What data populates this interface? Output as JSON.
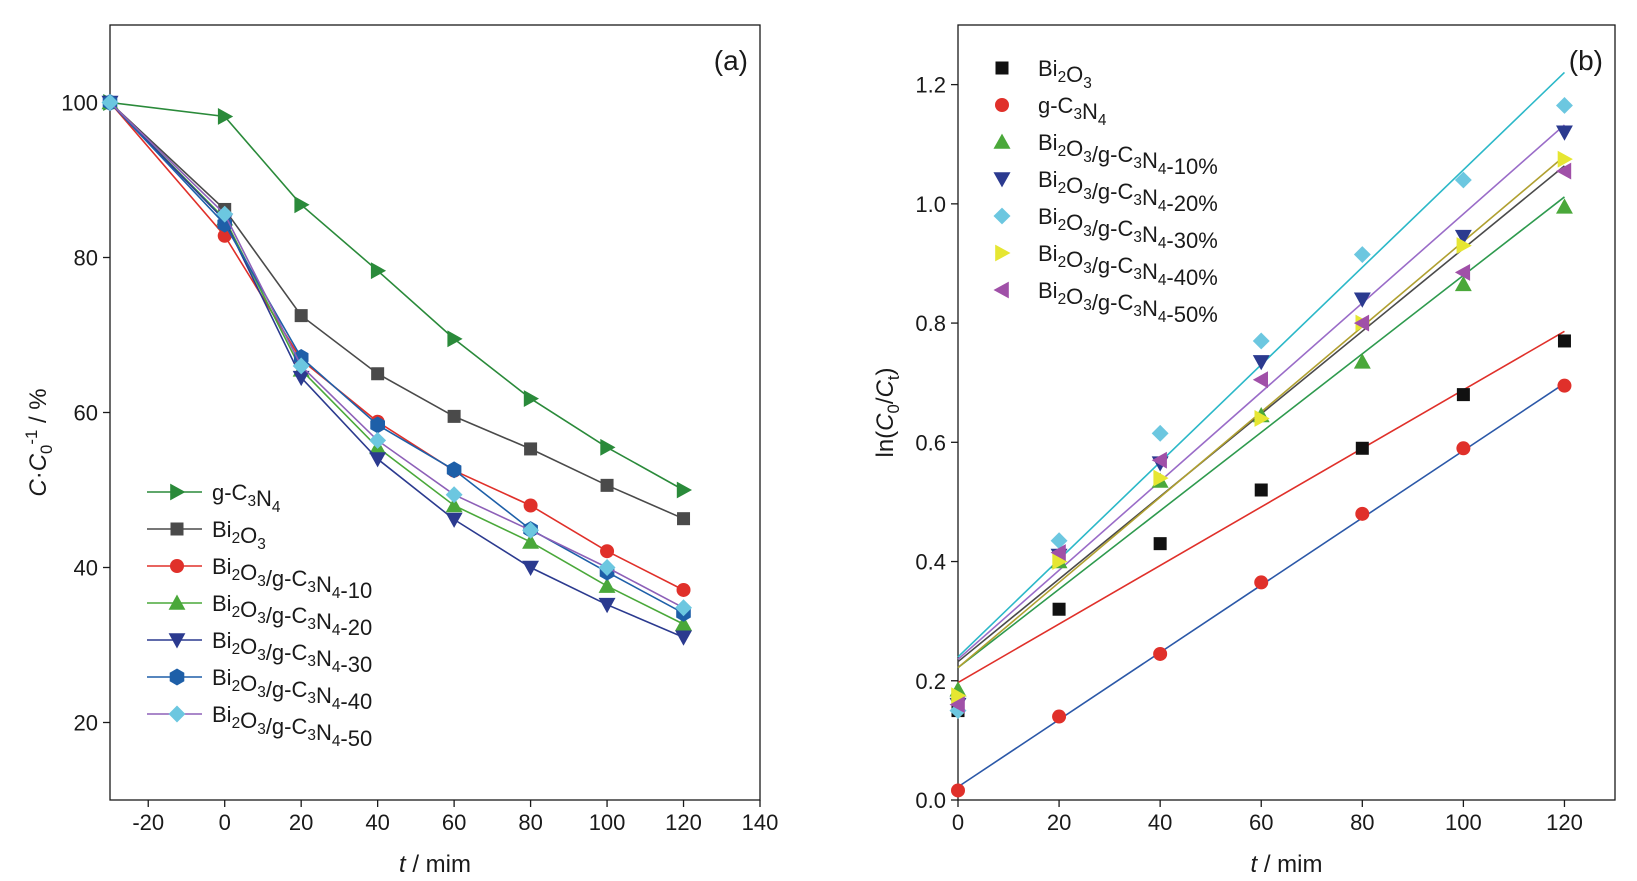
{
  "chart_data": [
    {
      "type": "line",
      "panel_label": "(a)",
      "xlabel_italic": "t",
      "xlabel_rest": " / mim",
      "ylabel": {
        "c": "C",
        "dot": "·",
        "c0": "C",
        "sub0": "0",
        "sup": "-1",
        "unit": " / %"
      },
      "xlim": [
        -30,
        140
      ],
      "ylim": [
        10,
        110
      ],
      "xticks": [
        -20,
        0,
        20,
        40,
        60,
        80,
        100,
        120,
        140
      ],
      "yticks": [
        20,
        40,
        60,
        80,
        100
      ],
      "x": [
        -30,
        0,
        20,
        40,
        60,
        80,
        100,
        120
      ],
      "grid": false,
      "legend_position": "bottom-left",
      "series": [
        {
          "name": "g-C3N4",
          "label": [
            [
              "g-C",
              ""
            ],
            [
              "3",
              "sub"
            ],
            [
              "N",
              ""
            ],
            [
              "4",
              "sub"
            ]
          ],
          "color": "#2a8a3a",
          "marker": "tri-right",
          "values": [
            100,
            98.2,
            86.8,
            78.3,
            69.5,
            61.8,
            55.5,
            50.0
          ]
        },
        {
          "name": "Bi2O3",
          "label": [
            [
              "Bi",
              ""
            ],
            [
              "2",
              "sub"
            ],
            [
              "O",
              ""
            ],
            [
              "3",
              "sub"
            ]
          ],
          "color": "#4a4a4a",
          "marker": "square",
          "values": [
            100,
            86.2,
            72.5,
            65.0,
            59.5,
            55.3,
            50.6,
            46.3
          ]
        },
        {
          "name": "Bi2O3/g-C3N4-10",
          "label": [
            [
              "Bi",
              ""
            ],
            [
              "2",
              "sub"
            ],
            [
              "O",
              ""
            ],
            [
              "3",
              "sub"
            ],
            [
              "/g-C",
              ""
            ],
            [
              "3",
              "sub"
            ],
            [
              "N",
              ""
            ],
            [
              "4",
              "sub"
            ],
            [
              "-10",
              ""
            ]
          ],
          "color": "#e0302a",
          "marker": "circle",
          "values": [
            100,
            82.8,
            66.8,
            58.8,
            52.5,
            48.0,
            42.1,
            37.1
          ]
        },
        {
          "name": "Bi2O3/g-C3N4-20",
          "label": [
            [
              "Bi",
              ""
            ],
            [
              "2",
              "sub"
            ],
            [
              "O",
              ""
            ],
            [
              "3",
              "sub"
            ],
            [
              "/g-C",
              ""
            ],
            [
              "3",
              "sub"
            ],
            [
              "N",
              ""
            ],
            [
              "4",
              "sub"
            ],
            [
              "-20",
              ""
            ]
          ],
          "color": "#4aa83a",
          "marker": "tri-up",
          "values": [
            100,
            85.0,
            65.5,
            55.5,
            48.0,
            43.3,
            37.6,
            32.7
          ]
        },
        {
          "name": "Bi2O3/g-C3N4-30",
          "label": [
            [
              "Bi",
              ""
            ],
            [
              "2",
              "sub"
            ],
            [
              "O",
              ""
            ],
            [
              "3",
              "sub"
            ],
            [
              "/g-C",
              ""
            ],
            [
              "3",
              "sub"
            ],
            [
              "N",
              ""
            ],
            [
              "4",
              "sub"
            ],
            [
              "-30",
              ""
            ]
          ],
          "color": "#2b3a8f",
          "marker": "tri-down",
          "values": [
            100,
            84.8,
            64.5,
            54.0,
            46.2,
            40.0,
            35.2,
            31.0
          ]
        },
        {
          "name": "Bi2O3/g-C3N4-40",
          "label": [
            [
              "Bi",
              ""
            ],
            [
              "2",
              "sub"
            ],
            [
              "O",
              ""
            ],
            [
              "3",
              "sub"
            ],
            [
              "/g-C",
              ""
            ],
            [
              "3",
              "sub"
            ],
            [
              "N",
              ""
            ],
            [
              "4",
              "sub"
            ],
            [
              "-40",
              ""
            ]
          ],
          "color": "#1e5fa8",
          "marker": "hexagon",
          "values": [
            100,
            84.3,
            67.1,
            58.4,
            52.6,
            44.9,
            39.4,
            34.1
          ]
        },
        {
          "name": "Bi2O3/g-C3N4-50",
          "label": [
            [
              "Bi",
              ""
            ],
            [
              "2",
              "sub"
            ],
            [
              "O",
              ""
            ],
            [
              "3",
              "sub"
            ],
            [
              "/g-C",
              ""
            ],
            [
              "3",
              "sub"
            ],
            [
              "N",
              ""
            ],
            [
              "4",
              "sub"
            ],
            [
              "-50",
              ""
            ]
          ],
          "color": "#8d60b8",
          "marker": "diamond",
          "markerColor": "#6cc7e0",
          "values": [
            100,
            85.6,
            66.0,
            56.4,
            49.4,
            44.8,
            40.0,
            34.8
          ]
        }
      ]
    },
    {
      "type": "scatter",
      "panel_label": "(b)",
      "xlabel_italic": "t",
      "xlabel_rest": " / mim",
      "ylabel": {
        "ln": "ln(",
        "c0": "C",
        "sub0": "0",
        "slash": "/",
        "ct": "C",
        "subt": "t",
        "close": ")"
      },
      "xlim": [
        0,
        130
      ],
      "ylim": [
        0,
        1.3
      ],
      "xticks": [
        0,
        20,
        40,
        60,
        80,
        100,
        120
      ],
      "yticks": [
        0.0,
        0.2,
        0.4,
        0.6,
        0.8,
        1.0,
        1.2
      ],
      "ytick_labels": [
        "0.0",
        "0.2",
        "0.4",
        "0.6",
        "0.8",
        "1.0",
        "1.2"
      ],
      "x": [
        0,
        20,
        40,
        60,
        80,
        100,
        120
      ],
      "grid": false,
      "legend_position": "top-left",
      "series": [
        {
          "name": "Bi2O3",
          "label": [
            [
              "Bi",
              ""
            ],
            [
              "2",
              "sub"
            ],
            [
              "O",
              ""
            ],
            [
              "3",
              "sub"
            ]
          ],
          "color": "#111111",
          "lineColor": "#e0302a",
          "marker": "square",
          "values": [
            0.15,
            0.32,
            0.43,
            0.52,
            0.59,
            0.68,
            0.77
          ],
          "fit": [
            0.197,
            0.00491
          ]
        },
        {
          "name": "g-C3N4",
          "label": [
            [
              "g-C",
              ""
            ],
            [
              "3",
              "sub"
            ],
            [
              "N",
              ""
            ],
            [
              "4",
              "sub"
            ]
          ],
          "color": "#e0302a",
          "lineColor": "#2b58a8",
          "marker": "circle",
          "values": [
            0.016,
            0.14,
            0.245,
            0.365,
            0.48,
            0.59,
            0.695
          ],
          "fit": [
            0.022,
            0.00564
          ]
        },
        {
          "name": "Bi2O3/g-C3N4-10%",
          "label": [
            [
              "Bi",
              ""
            ],
            [
              "2",
              "sub"
            ],
            [
              "O",
              ""
            ],
            [
              "3",
              "sub"
            ],
            [
              "/g-C",
              ""
            ],
            [
              "3",
              "sub"
            ],
            [
              "N",
              ""
            ],
            [
              "4",
              "sub"
            ],
            [
              "-10%",
              ""
            ]
          ],
          "color": "#4aa83a",
          "lineColor": "#2e9a4e",
          "marker": "tri-up",
          "values": [
            0.185,
            0.4,
            0.535,
            0.645,
            0.735,
            0.865,
            0.995
          ],
          "fit": [
            0.222,
            0.00658
          ]
        },
        {
          "name": "Bi2O3/g-C3N4-20%",
          "label": [
            [
              "Bi",
              ""
            ],
            [
              "2",
              "sub"
            ],
            [
              "O",
              ""
            ],
            [
              "3",
              "sub"
            ],
            [
              "/g-C",
              ""
            ],
            [
              "3",
              "sub"
            ],
            [
              "N",
              ""
            ],
            [
              "4",
              "sub"
            ],
            [
              "-20%",
              ""
            ]
          ],
          "color": "#2b3a8f",
          "lineColor": "#4a4a4a",
          "marker": "tri-down",
          "values": [
            0.16,
            0.41,
            0.565,
            0.735,
            0.84,
            0.945,
            1.12
          ],
          "fit": [
            0.232,
            0.00693
          ]
        },
        {
          "name": "Bi2O3/g-C3N4-30%",
          "label": [
            [
              "Bi",
              ""
            ],
            [
              "2",
              "sub"
            ],
            [
              "O",
              ""
            ],
            [
              "3",
              "sub"
            ],
            [
              "/g-C",
              ""
            ],
            [
              "3",
              "sub"
            ],
            [
              "N",
              ""
            ],
            [
              "4",
              "sub"
            ],
            [
              "-30%",
              ""
            ]
          ],
          "color": "#6cc7e0",
          "lineColor": "#2bb8c8",
          "marker": "diamond",
          "values": [
            0.15,
            0.435,
            0.615,
            0.77,
            0.915,
            1.04,
            1.165
          ],
          "fit": [
            0.24,
            0.00817
          ]
        },
        {
          "name": "Bi2O3/g-C3N4-40%",
          "label": [
            [
              "Bi",
              ""
            ],
            [
              "2",
              "sub"
            ],
            [
              "O",
              ""
            ],
            [
              "3",
              "sub"
            ],
            [
              "/g-C",
              ""
            ],
            [
              "3",
              "sub"
            ],
            [
              "N",
              ""
            ],
            [
              "4",
              "sub"
            ],
            [
              "-40%",
              ""
            ]
          ],
          "color": "#e6e632",
          "lineColor": "#b0a030",
          "marker": "tri-right",
          "values": [
            0.175,
            0.4,
            0.54,
            0.64,
            0.8,
            0.93,
            1.075
          ],
          "fit": [
            0.222,
            0.00715
          ]
        },
        {
          "name": "Bi2O3/g-C3N4-50%",
          "label": [
            [
              "Bi",
              ""
            ],
            [
              "2",
              "sub"
            ],
            [
              "O",
              ""
            ],
            [
              "3",
              "sub"
            ],
            [
              "/g-C",
              ""
            ],
            [
              "3",
              "sub"
            ],
            [
              "N",
              ""
            ],
            [
              "4",
              "sub"
            ],
            [
              "-50%",
              ""
            ]
          ],
          "color": "#a050a8",
          "lineColor": "#9a6cc8",
          "marker": "tri-left",
          "values": [
            0.16,
            0.415,
            0.57,
            0.705,
            0.8,
            0.885,
            1.055
          ],
          "fit": [
            0.236,
            0.00747
          ]
        }
      ]
    }
  ]
}
